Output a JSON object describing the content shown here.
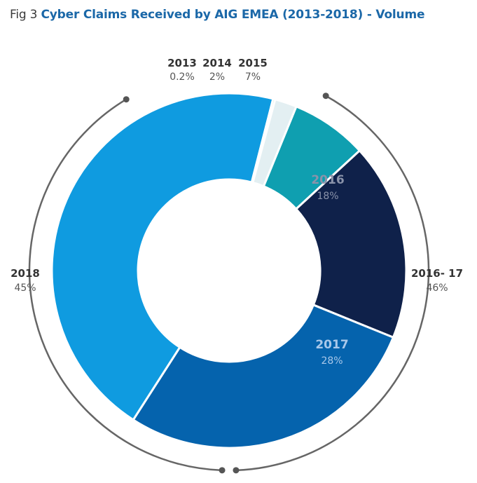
{
  "title": {
    "prefix": "Fig 3",
    "main": "Cyber Claims Received by AIG EMEA (2013-2018) - Volume"
  },
  "chart_data": {
    "type": "pie",
    "title": "Cyber Claims Received by AIG EMEA (2013-2018) - Volume",
    "donut": true,
    "slices": [
      {
        "label": "2015",
        "value_label": "7%",
        "value": 7,
        "color": "#0f9fb0"
      },
      {
        "label": "2016",
        "value_label": "18%",
        "value": 18,
        "color": "#0f214a"
      },
      {
        "label": "2017",
        "value_label": "28%",
        "value": 28,
        "color": "#0563ad"
      },
      {
        "label": "2018",
        "value_label": "45%",
        "value": 45,
        "color": "#0f9be0"
      },
      {
        "label": "2013",
        "value_label": "0.2%",
        "value": 0.2,
        "color": "#1f9a4a"
      },
      {
        "label": "2014",
        "value_label": "2%",
        "value": 2,
        "color": "#e3eff2"
      }
    ],
    "groups": [
      {
        "label": "2016- 17",
        "value_label": "46%"
      }
    ]
  }
}
